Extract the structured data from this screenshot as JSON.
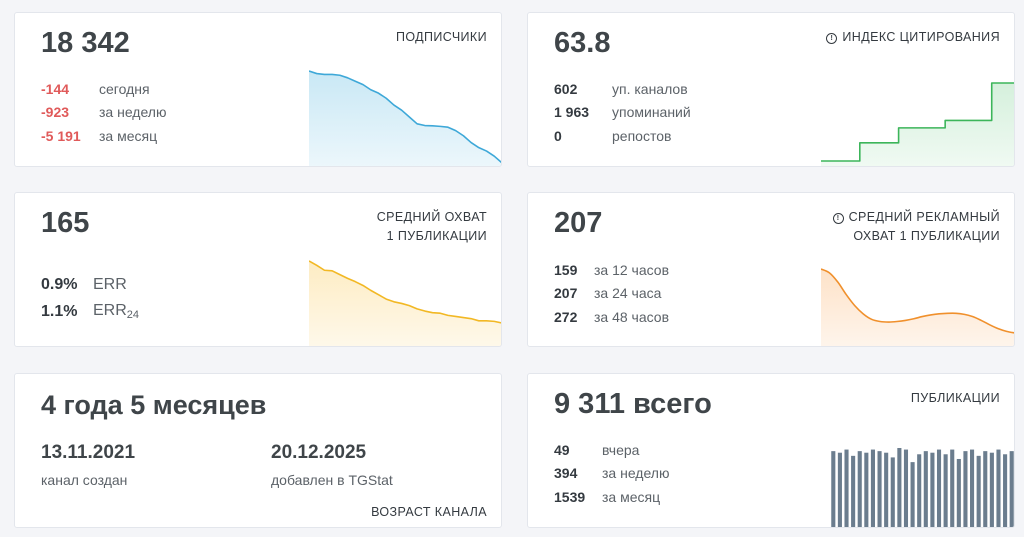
{
  "subscribers": {
    "value": "18 342",
    "label": "ПОДПИСЧИКИ",
    "rows": [
      {
        "value": "-144",
        "desc": "сегодня"
      },
      {
        "value": "-923",
        "desc": "за неделю"
      },
      {
        "value": "-5 191",
        "desc": "за месяц"
      }
    ],
    "color": "#3ea8d8",
    "fill": "#c9e8f5",
    "series": [
      18920,
      18905,
      18900,
      18900,
      18895,
      18880,
      18860,
      18840,
      18810,
      18790,
      18760,
      18720,
      18690,
      18650,
      18610,
      18600,
      18598,
      18595,
      18590,
      18570,
      18540,
      18500,
      18470,
      18450,
      18420,
      18380
    ]
  },
  "citation": {
    "value": "63.8",
    "label": "ИНДЕКС ЦИТИРОВАНИЯ",
    "icon": "info-icon",
    "rows": [
      {
        "value": "602",
        "desc": "уп. каналов"
      },
      {
        "value": "1 963",
        "desc": "упоминаний"
      },
      {
        "value": "0",
        "desc": "репостов"
      }
    ],
    "color": "#3cb55a",
    "fill": "#d5f0dc",
    "series": [
      56.5,
      56.5,
      56.5,
      56.5,
      56.5,
      58.2,
      58.2,
      58.2,
      58.2,
      58.2,
      59.6,
      59.6,
      59.6,
      59.6,
      59.6,
      59.6,
      60.3,
      60.3,
      60.3,
      60.3,
      60.3,
      60.3,
      63.8,
      63.8,
      63.8,
      63.8
    ]
  },
  "reach": {
    "value": "165",
    "label_lines": [
      "СРЕДНИЙ ОХВАТ",
      "1 ПУБЛИКАЦИИ"
    ],
    "rows": [
      {
        "value": "0.9%",
        "desc": "ERR",
        "sub": ""
      },
      {
        "value": "1.1%",
        "desc": "ERR",
        "sub": "24"
      }
    ],
    "color": "#f2b824",
    "fill": "#fdecc3",
    "series": [
      300,
      292,
      283,
      282,
      275,
      268,
      262,
      255,
      246,
      238,
      230,
      225,
      222,
      218,
      212,
      208,
      205,
      204,
      200,
      198,
      196,
      194,
      190,
      190,
      189,
      186
    ]
  },
  "ad_reach": {
    "value": "207",
    "label_lines": [
      "СРЕДНИЙ РЕКЛАМНЫЙ",
      "ОХВАТ 1 ПУБЛИКАЦИИ"
    ],
    "icon": "info-icon",
    "rows": [
      {
        "value": "159",
        "desc": "за 12 часов"
      },
      {
        "value": "207",
        "desc": "за 24 часа"
      },
      {
        "value": "272",
        "desc": "за 48 часов"
      }
    ],
    "color": "#f0902c",
    "fill": "#fde2c8",
    "series": [
      272,
      265,
      248,
      225,
      205,
      190,
      180,
      176,
      175,
      176,
      178,
      181,
      185,
      188,
      190,
      191,
      191,
      189,
      185,
      178,
      170,
      163,
      158,
      155
    ]
  },
  "age": {
    "value": "4 года 5 месяцев",
    "created_date": "13.11.2021",
    "created_caption": "канал создан",
    "added_date": "20.12.2025",
    "added_caption": "добавлен в TGStat",
    "footer_label": "ВОЗРАСТ КАНАЛА"
  },
  "posts": {
    "value": "9 311",
    "value_suffix": "всего",
    "label": "ПУБЛИКАЦИИ",
    "rows": [
      {
        "value": "49",
        "desc": "вчера"
      },
      {
        "value": "394",
        "desc": "за неделю"
      },
      {
        "value": "1539",
        "desc": "за месяц"
      }
    ],
    "color": "#6b7d8e",
    "series": [
      49,
      48,
      50,
      46,
      49,
      48,
      50,
      49,
      48,
      45,
      51,
      50,
      42,
      47,
      49,
      48,
      50,
      47,
      50,
      44,
      49,
      50,
      46,
      49,
      48,
      50,
      47,
      49
    ]
  }
}
